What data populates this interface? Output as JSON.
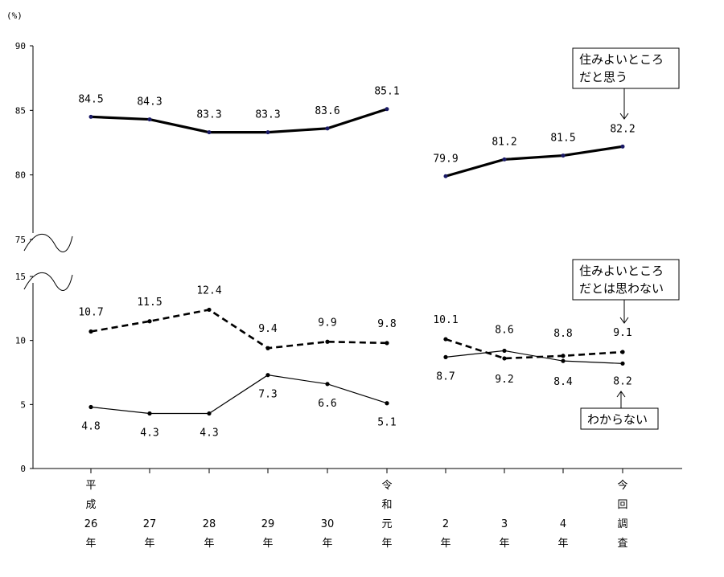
{
  "chart_data": {
    "type": "line",
    "unit": "(%)",
    "y_ticks_upper": [
      "90",
      "85",
      "80",
      "75"
    ],
    "y_ticks_lower": [
      "15",
      "10",
      "5",
      "0"
    ],
    "ylim_upper": [
      75,
      90
    ],
    "ylim_lower": [
      0,
      15
    ],
    "categories": [
      [
        "平",
        "成",
        "26",
        "年"
      ],
      [
        "27",
        "年"
      ],
      [
        "28",
        "年"
      ],
      [
        "29",
        "年"
      ],
      [
        "30",
        "年"
      ],
      [
        "令",
        "和",
        "元",
        "年"
      ],
      [
        "2",
        "年"
      ],
      [
        "3",
        "年"
      ],
      [
        "4",
        "年"
      ],
      [
        "今",
        "回",
        "調",
        "査"
      ]
    ],
    "series": [
      {
        "name": "住みよいところだと思う",
        "callout": [
          "住みよいところ",
          "だと思う"
        ],
        "style": "thick",
        "values": [
          84.5,
          84.3,
          83.3,
          83.3,
          83.6,
          85.1,
          79.9,
          81.2,
          81.5,
          82.2
        ],
        "labels": [
          "84.5",
          "84.3",
          "83.3",
          "83.3",
          "83.6",
          "85.1",
          "79.9",
          "81.2",
          "81.5",
          "82.2"
        ]
      },
      {
        "name": "住みよいところだとは思わない",
        "callout": [
          "住みよいところ",
          "だとは思わない"
        ],
        "style": "dashed",
        "values": [
          10.7,
          11.5,
          12.4,
          9.4,
          9.9,
          9.8,
          10.1,
          8.6,
          8.8,
          9.1
        ],
        "labels": [
          "10.7",
          "11.5",
          "12.4",
          "9.4",
          "9.9",
          "9.8",
          "10.1",
          "8.6",
          "8.8",
          "9.1"
        ]
      },
      {
        "name": "わからない",
        "callout": [
          "わからない"
        ],
        "style": "thin",
        "values": [
          4.8,
          4.3,
          4.3,
          7.3,
          6.6,
          5.1,
          8.7,
          9.2,
          8.4,
          8.2
        ],
        "labels": [
          "4.8",
          "4.3",
          "4.3",
          "7.3",
          "6.6",
          "5.1",
          "8.7",
          "9.2",
          "8.4",
          "8.2"
        ]
      }
    ],
    "breaks_after_index": [
      5
    ],
    "axis_break": "between 75 and 15",
    "grid": false,
    "legend": "callouts"
  }
}
